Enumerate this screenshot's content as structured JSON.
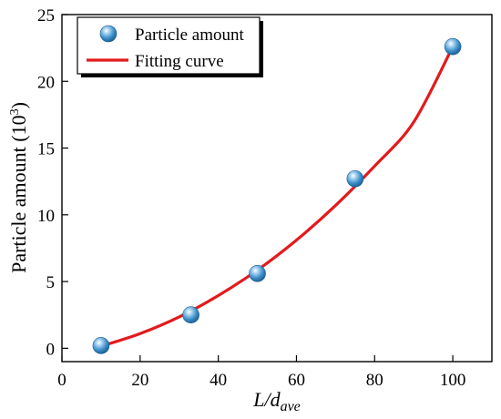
{
  "chart_data": {
    "type": "scatter",
    "xlabel_main": "L/d",
    "xlabel_sub": "ave",
    "ylabel_main": "Particle amount (10",
    "ylabel_sup": "3",
    "ylabel_end": ")",
    "xlim": [
      0,
      110
    ],
    "ylim": [
      -1,
      25
    ],
    "xticks": [
      0,
      20,
      40,
      60,
      80,
      100
    ],
    "yticks": [
      0,
      5,
      10,
      15,
      20,
      25
    ],
    "grid": false,
    "legend_position": "top-left",
    "series": [
      {
        "name": "Particle amount",
        "kind": "marker",
        "color": "#3d8fc9",
        "x": [
          10,
          33,
          50,
          75,
          100
        ],
        "y": [
          0.2,
          2.5,
          5.6,
          12.7,
          22.6
        ]
      },
      {
        "name": "Fitting curve",
        "kind": "line",
        "color": "#e31a1c",
        "x": [
          10,
          20,
          30,
          40,
          50,
          60,
          70,
          80,
          90,
          100
        ],
        "y": [
          0.15,
          1.1,
          2.35,
          3.95,
          5.85,
          8.1,
          10.7,
          13.65,
          16.95,
          22.6
        ]
      }
    ]
  }
}
